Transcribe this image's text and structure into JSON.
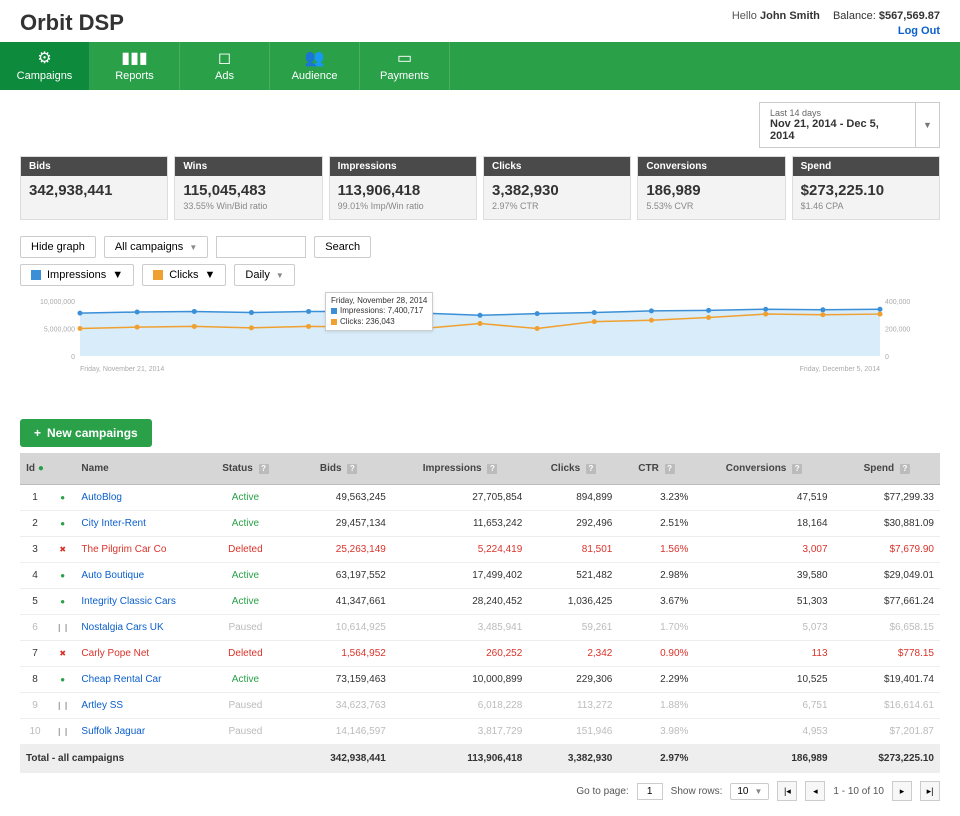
{
  "brand": "Orbit DSP",
  "header": {
    "hello": "Hello",
    "username": "John Smith",
    "balance_label": "Balance:",
    "balance": "$567,569.87",
    "logout": "Log Out"
  },
  "nav": [
    {
      "label": "Campaigns",
      "icon": "⚙",
      "active": true
    },
    {
      "label": "Reports",
      "icon": "▮▮▮",
      "active": false
    },
    {
      "label": "Ads",
      "icon": "◻",
      "active": false
    },
    {
      "label": "Audience",
      "icon": "👥",
      "active": false
    },
    {
      "label": "Payments",
      "icon": "▭",
      "active": false
    }
  ],
  "daterange": {
    "small": "Last 14 days",
    "dates": "Nov 21, 2014 - Dec 5, 2014"
  },
  "metrics": [
    {
      "title": "Bids",
      "value": "342,938,441",
      "sub": ""
    },
    {
      "title": "Wins",
      "value": "115,045,483",
      "sub": "33.55% Win/Bid ratio"
    },
    {
      "title": "Impressions",
      "value": "113,906,418",
      "sub": "99.01% Imp/Win ratio"
    },
    {
      "title": "Clicks",
      "value": "3,382,930",
      "sub": "2.97% CTR"
    },
    {
      "title": "Conversions",
      "value": "186,989",
      "sub": "5.53% CVR"
    },
    {
      "title": "Spend",
      "value": "$273,225.10",
      "sub": "$1.46 CPA"
    }
  ],
  "toolbar": {
    "hide_graph": "Hide graph",
    "all_campaigns": "All campaigns",
    "search": "Search",
    "series1": "Impressions",
    "series2": "Clicks",
    "interval": "Daily"
  },
  "chart": {
    "color_impressions": "#3b8fd6",
    "color_clicks": "#f0a030",
    "fill_impressions": "#d8ecf9",
    "y1_labels": [
      "10,000,000",
      "5,000,000",
      "0"
    ],
    "y2_labels": [
      "400,000",
      "200,000",
      "0"
    ],
    "x_start": "Friday, November 21, 2014",
    "x_end": "Friday, December 5, 2014",
    "impressions": [
      7.8,
      8.0,
      8.1,
      7.9,
      8.1,
      8.1,
      7.8,
      7.4,
      7.7,
      7.9,
      8.2,
      8.3,
      8.5,
      8.4,
      8.5
    ],
    "clicks": [
      200,
      210,
      215,
      205,
      215,
      210,
      200,
      236,
      200,
      250,
      260,
      280,
      305,
      300,
      305
    ],
    "tooltip": {
      "date": "Friday, November 28, 2014",
      "l1": "Impressions: 7,400,717",
      "l2": "Clicks: 236,043"
    }
  },
  "newbtn": "New campaings",
  "table": {
    "headers": [
      "Id",
      "",
      "Name",
      "Status",
      "Bids",
      "Impressions",
      "Clicks",
      "CTR",
      "Conversions",
      "Spend"
    ],
    "help_cols": [
      3,
      4,
      5,
      6,
      7,
      8,
      9
    ],
    "rows": [
      {
        "id": "1",
        "st": "active",
        "name": "AutoBlog",
        "status": "Active",
        "bids": "49,563,245",
        "imp": "27,705,854",
        "clicks": "894,899",
        "ctr": "3.23%",
        "conv": "47,519",
        "spend": "$77,299.33",
        "dim": false
      },
      {
        "id": "2",
        "st": "active",
        "name": "City Inter-Rent",
        "status": "Active",
        "bids": "29,457,134",
        "imp": "11,653,242",
        "clicks": "292,496",
        "ctr": "2.51%",
        "conv": "18,164",
        "spend": "$30,881.09",
        "dim": false
      },
      {
        "id": "3",
        "st": "deleted",
        "name": "The Pilgrim Car Co",
        "status": "Deleted",
        "bids": "25,263,149",
        "imp": "5,224,419",
        "clicks": "81,501",
        "ctr": "1.56%",
        "conv": "3,007",
        "spend": "$7,679.90",
        "dim": false
      },
      {
        "id": "4",
        "st": "active",
        "name": "Auto Boutique",
        "status": "Active",
        "bids": "63,197,552",
        "imp": "17,499,402",
        "clicks": "521,482",
        "ctr": "2.98%",
        "conv": "39,580",
        "spend": "$29,049.01",
        "dim": false
      },
      {
        "id": "5",
        "st": "active",
        "name": "Integrity Classic Cars",
        "status": "Active",
        "bids": "41,347,661",
        "imp": "28,240,452",
        "clicks": "1,036,425",
        "ctr": "3.67%",
        "conv": "51,303",
        "spend": "$77,661.24",
        "dim": false
      },
      {
        "id": "6",
        "st": "paused",
        "name": "Nostalgia Cars UK",
        "status": "Paused",
        "bids": "10,614,925",
        "imp": "3,485,941",
        "clicks": "59,261",
        "ctr": "1.70%",
        "conv": "5,073",
        "spend": "$6,658.15",
        "dim": true
      },
      {
        "id": "7",
        "st": "deleted",
        "name": "Carly Pope Net",
        "status": "Deleted",
        "bids": "1,564,952",
        "imp": "260,252",
        "clicks": "2,342",
        "ctr": "0.90%",
        "conv": "113",
        "spend": "$778.15",
        "dim": false
      },
      {
        "id": "8",
        "st": "active",
        "name": "Cheap Rental Car",
        "status": "Active",
        "bids": "73,159,463",
        "imp": "10,000,899",
        "clicks": "229,306",
        "ctr": "2.29%",
        "conv": "10,525",
        "spend": "$19,401.74",
        "dim": false
      },
      {
        "id": "9",
        "st": "paused",
        "name": "Artley SS",
        "status": "Paused",
        "bids": "34,623,763",
        "imp": "6,018,228",
        "clicks": "113,272",
        "ctr": "1.88%",
        "conv": "6,751",
        "spend": "$16,614.61",
        "dim": true
      },
      {
        "id": "10",
        "st": "paused",
        "name": "Suffolk Jaguar",
        "status": "Paused",
        "bids": "14,146,597",
        "imp": "3,817,729",
        "clicks": "151,946",
        "ctr": "3.98%",
        "conv": "4,953",
        "spend": "$7,201.87",
        "dim": true
      }
    ],
    "footer": {
      "label": "Total - all campaigns",
      "bids": "342,938,441",
      "imp": "113,906,418",
      "clicks": "3,382,930",
      "ctr": "2.97%",
      "conv": "186,989",
      "spend": "$273,225.10"
    }
  },
  "pager": {
    "goto": "Go to page:",
    "page": "1",
    "showrows": "Show rows:",
    "rows": "10",
    "range": "1 - 10 of 10"
  },
  "status_colors": {
    "active": "#2aa049",
    "deleted": "#d9332a",
    "paused": "#aaaaaa"
  },
  "status_icons": {
    "active": "●",
    "deleted": "✖",
    "paused": "❙❙"
  }
}
